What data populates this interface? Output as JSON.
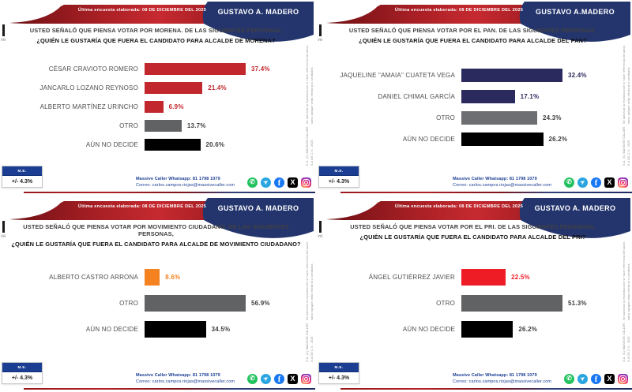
{
  "shared": {
    "banner": "Última encuesta elaborada: 08 DE DICIEMBRE DEL 2025",
    "badge": {
      "header": "M.E.",
      "value": "+/- 4.3%"
    },
    "footer": {
      "line1": "Massive Caller Whatsapp: 81 1798 1079",
      "line2": "Correo: carlos.campos.riojas@massivecaller.com"
    },
    "social_icons": [
      "whatsapp-icon",
      "telegram-icon",
      "facebook-icon",
      "x-icon",
      "instagram-icon"
    ],
    "side_note_line1": "S.A. (C) MASSIVE CALLER S.A DE C.V., 2025",
    "side_note_line2": "Se autoriza la reproducción si hace referencia del autor, salvo aplique veda electoral o candados",
    "logo_fragment": "ve",
    "colors": {
      "ribbon_red": "#c1272d",
      "navy": "#24356d",
      "badge_blue": "#1b3e93",
      "morena_red": "#c1272d",
      "pan_navy": "#2b2a5e",
      "mc_orange": "#f58220",
      "pri_red": "#ee1c25",
      "otro_gray": "#616264",
      "undecided_black": "#000000"
    }
  },
  "panels": [
    {
      "party": "MORENA",
      "title": "GUSTAVO A. MADERO",
      "question_line1": "USTED SEÑALÓ QUE PIENSA VOTAR POR MORENA. DE LAS SIGUIENTES PERSONAS,",
      "question_line2": "¿QUIÉN LE GUSTARÍA QUE FUERA EL CANDIDATO PARA ALCALDE DE MORENA?",
      "bars": [
        {
          "label": "CÉSAR CRAVIOTO ROMERO",
          "display": "37.4%",
          "value": 37.4,
          "bar_color": "#c1272d",
          "value_color": "#c1272d"
        },
        {
          "label": "JANCARLO LOZANO REYNOSO",
          "display": "21.4%",
          "value": 21.4,
          "bar_color": "#c1272d",
          "value_color": "#c1272d"
        },
        {
          "label": "ALBERTO MARTÍNEZ URINCHO",
          "display": "6.9%",
          "value": 6.9,
          "bar_color": "#c1272d",
          "value_color": "#c1272d"
        },
        {
          "label": "OTRO",
          "display": "13.7%",
          "value": 13.7,
          "bar_color": "#616264",
          "value_color": "#3f3e40"
        },
        {
          "label": "AÚN NO DECIDE",
          "display": "20.6%",
          "value": 20.6,
          "bar_color": "#000000",
          "value_color": "#3f3e40"
        }
      ]
    },
    {
      "party": "PAN",
      "title": "GUSTAVO A.MADERO",
      "question_line1": "USTED SEÑALÓ QUE PIENSA VOTAR POR EL PAN. DE LAS SIGUIENTES PERSONAS,",
      "question_line2": "¿QUIÉN LE GUSTARÍA QUE FUERA EL CANDIDATO PARA ALCALDE DEL PAN?",
      "bars": [
        {
          "label": "JAQUELINE \"AMAIA\" CUATETA VEGA",
          "display": "32.4%",
          "value": 32.4,
          "bar_color": "#2b2a5e",
          "value_color": "#2b2a5e"
        },
        {
          "label": "DANIEL CHIMAL GARCÍA",
          "display": "17.1%",
          "value": 17.1,
          "bar_color": "#2b2a5e",
          "value_color": "#2b2a5e"
        },
        {
          "label": "OTRO",
          "display": "24.3%",
          "value": 24.3,
          "bar_color": "#6d6e71",
          "value_color": "#3f3e40"
        },
        {
          "label": "AÚN NO DECIDE",
          "display": "26.2%",
          "value": 26.2,
          "bar_color": "#000000",
          "value_color": "#3f3e40"
        }
      ]
    },
    {
      "party": "MOVIMIENTO CIUDADANO",
      "title": "GUSTAVO A. MADERO",
      "question_line1": "USTED SEÑALÓ QUE PIENSA VOTAR POR MOVIMIENTO CIUDADANO. DE LAS SIGUIENTES PERSONAS,",
      "question_line2": "¿QUIÉN LE GUSTARÍA QUE FUERA EL CANDIDATO PARA ALCALDE DE MOVIMIENTO CIUDADANO?",
      "bars": [
        {
          "label": "ALBERTO CASTRO ARRONA",
          "display": "8.6%",
          "value": 8.6,
          "bar_color": "#f58220",
          "value_color": "#f58220"
        },
        {
          "label": "OTRO",
          "display": "56.9%",
          "value": 56.9,
          "bar_color": "#616264",
          "value_color": "#3f3e40"
        },
        {
          "label": "AÚN NO DECIDE",
          "display": "34.5%",
          "value": 34.5,
          "bar_color": "#000000",
          "value_color": "#3f3e40"
        }
      ]
    },
    {
      "party": "PRI",
      "title": "GUSTAVO A. MADERO",
      "question_line1": "USTED SEÑALÓ QUE PIENSA VOTAR POR EL PRI. DE LAS SIGUIENTES PERSONAS,",
      "question_line2": "¿QUIÉN LE GUSTARÍA QUE FUERA EL CANDIDATO PARA ALCALDE DEL PRI?",
      "bars": [
        {
          "label": "ÁNGEL GUTIÉRREZ JAVIER",
          "display": "22.5%",
          "value": 22.5,
          "bar_color": "#ee1c25",
          "value_color": "#ee1c25"
        },
        {
          "label": "OTRO",
          "display": "51.3%",
          "value": 51.3,
          "bar_color": "#616264",
          "value_color": "#3f3e40"
        },
        {
          "label": "AÚN NO DECIDE",
          "display": "26.2%",
          "value": 26.2,
          "bar_color": "#000000",
          "value_color": "#3f3e40"
        }
      ]
    }
  ],
  "chart_data": [
    {
      "type": "bar",
      "orientation": "horizontal",
      "title": "¿QUIÉN LE GUSTARÍA QUE FUERA EL CANDIDATO PARA ALCALDE DE MORENA?",
      "categories": [
        "CÉSAR CRAVIOTO ROMERO",
        "JANCARLO LOZANO REYNOSO",
        "ALBERTO MARTÍNEZ URINCHO",
        "OTRO",
        "AÚN NO DECIDE"
      ],
      "values": [
        37.4,
        21.4,
        6.9,
        13.7,
        20.6
      ],
      "unit": "%",
      "xlim": [
        0,
        40
      ],
      "grid": false,
      "legend": false
    },
    {
      "type": "bar",
      "orientation": "horizontal",
      "title": "¿QUIÉN LE GUSTARÍA QUE FUERA EL CANDIDATO PARA ALCALDE DEL PAN?",
      "categories": [
        "JAQUELINE \"AMAIA\" CUATETA VEGA",
        "DANIEL CHIMAL GARCÍA",
        "OTRO",
        "AÚN NO DECIDE"
      ],
      "values": [
        32.4,
        17.1,
        24.3,
        26.2
      ],
      "unit": "%",
      "xlim": [
        0,
        35
      ],
      "grid": false,
      "legend": false
    },
    {
      "type": "bar",
      "orientation": "horizontal",
      "title": "¿QUIÉN LE GUSTARÍA QUE FUERA EL CANDIDATO PARA ALCALDE DE MOVIMIENTO CIUDADANO?",
      "categories": [
        "ALBERTO CASTRO ARRONA",
        "OTRO",
        "AÚN NO DECIDE"
      ],
      "values": [
        8.6,
        56.9,
        34.5
      ],
      "unit": "%",
      "xlim": [
        0,
        60
      ],
      "grid": false,
      "legend": false
    },
    {
      "type": "bar",
      "orientation": "horizontal",
      "title": "¿QUIÉN LE GUSTARÍA QUE FUERA EL CANDIDATO PARA ALCALDE DEL PRI?",
      "categories": [
        "ÁNGEL GUTIÉRREZ JAVIER",
        "OTRO",
        "AÚN NO DECIDE"
      ],
      "values": [
        22.5,
        51.3,
        26.2
      ],
      "unit": "%",
      "xlim": [
        0,
        55
      ],
      "grid": false,
      "legend": false
    }
  ]
}
